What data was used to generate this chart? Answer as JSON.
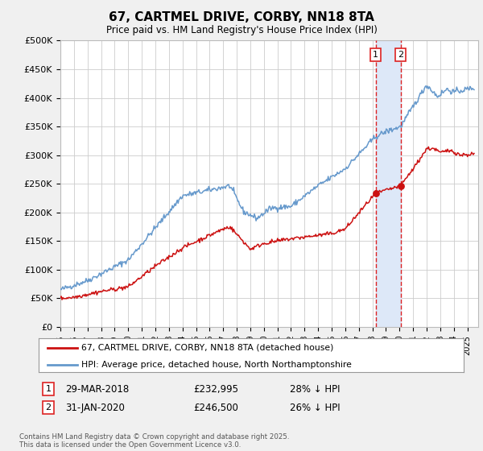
{
  "title": "67, CARTMEL DRIVE, CORBY, NN18 8TA",
  "subtitle": "Price paid vs. HM Land Registry's House Price Index (HPI)",
  "bg_color": "#f0f0f0",
  "plot_bg_color": "#ffffff",
  "hpi_color": "#6699cc",
  "price_color": "#cc1111",
  "highlight_color": "#dde8f8",
  "vline_color": "#dd2222",
  "ylim": [
    0,
    500000
  ],
  "yticks": [
    0,
    50000,
    100000,
    150000,
    200000,
    250000,
    300000,
    350000,
    400000,
    450000,
    500000
  ],
  "ytick_labels": [
    "£0",
    "£50K",
    "£100K",
    "£150K",
    "£200K",
    "£250K",
    "£300K",
    "£350K",
    "£400K",
    "£450K",
    "£500K"
  ],
  "transaction1": {
    "label": "1",
    "date": "29-MAR-2018",
    "price": 232995,
    "pct": "28% ↓ HPI",
    "x": 2018.24
  },
  "transaction2": {
    "label": "2",
    "date": "31-JAN-2020",
    "price": 246500,
    "pct": "26% ↓ HPI",
    "x": 2020.08
  },
  "legend_line1": "67, CARTMEL DRIVE, CORBY, NN18 8TA (detached house)",
  "legend_line2": "HPI: Average price, detached house, North Northamptonshire",
  "footnote": "Contains HM Land Registry data © Crown copyright and database right 2025.\nThis data is licensed under the Open Government Licence v3.0.",
  "xmin": 1995,
  "xmax": 2025.8
}
